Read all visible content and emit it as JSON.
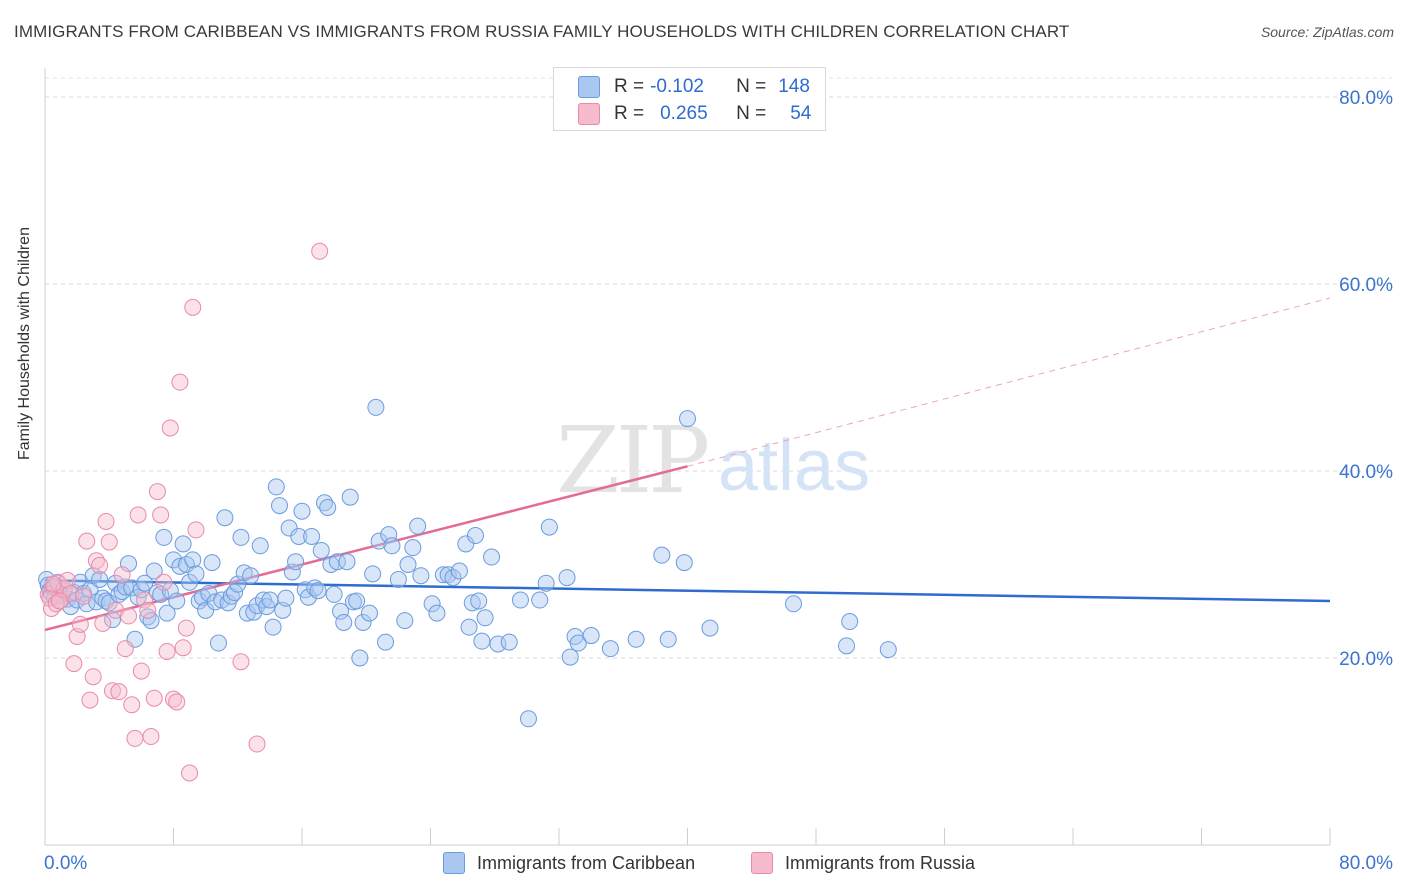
{
  "title": "IMMIGRANTS FROM CARIBBEAN VS IMMIGRANTS FROM RUSSIA FAMILY HOUSEHOLDS WITH CHILDREN CORRELATION CHART",
  "source": "Source: ZipAtlas.com",
  "watermark": {
    "zip": "ZIP",
    "atlas": "atlas"
  },
  "legend": {
    "r_label": "R =",
    "n_label": "N =",
    "rows": [
      {
        "r": "-0.102",
        "n": "148",
        "color": "#a9c7ef",
        "border": "#6b9be0"
      },
      {
        "r": "0.265",
        "n": "54",
        "color": "#f6bccd",
        "border": "#e98aa9"
      }
    ]
  },
  "bottom_legend": [
    {
      "label": "Immigrants from Caribbean",
      "color": "#a9c7ef",
      "border": "#6b9be0"
    },
    {
      "label": "Immigrants from Russia",
      "color": "#f6bccd",
      "border": "#e98aa9"
    }
  ],
  "chart_data": {
    "type": "scatter",
    "title": "IMMIGRANTS FROM CARIBBEAN VS IMMIGRANTS FROM RUSSIA FAMILY HOUSEHOLDS WITH CHILDREN CORRELATION CHART",
    "xlabel": "",
    "ylabel": "Family Households with Children",
    "xlim": [
      0,
      80
    ],
    "ylim": [
      0,
      82
    ],
    "x_tick_labels": [
      "0.0%",
      "80.0%"
    ],
    "y_tick_labels": [
      {
        "value": 20,
        "label": "20.0%"
      },
      {
        "value": 40,
        "label": "40.0%"
      },
      {
        "value": 60,
        "label": "60.0%"
      },
      {
        "value": 80,
        "label": "80.0%"
      }
    ],
    "grid": "horizontal dashed",
    "legend_position": "top-center",
    "series": [
      {
        "name": "Immigrants from Caribbean",
        "color": "#6b9be0",
        "fill": "rgba(169,199,239,0.45)",
        "trend": {
          "x": [
            0,
            80
          ],
          "y": [
            28.3,
            26.1
          ],
          "color": "#2f6ccf",
          "dashed_extension": false
        },
        "points": [
          [
            0.1,
            28.4
          ],
          [
            0.2,
            27.8
          ],
          [
            0.3,
            27.2
          ],
          [
            0.4,
            26.9
          ],
          [
            0.5,
            27.5
          ],
          [
            0.6,
            26.5
          ],
          [
            0.8,
            28.0
          ],
          [
            1.0,
            26.8
          ],
          [
            1.2,
            27.2
          ],
          [
            1.4,
            26.3
          ],
          [
            1.6,
            25.5
          ],
          [
            1.8,
            27.0
          ],
          [
            2.0,
            26.2
          ],
          [
            2.2,
            28.1
          ],
          [
            2.4,
            26.9
          ],
          [
            2.6,
            25.8
          ],
          [
            2.8,
            27.3
          ],
          [
            3.0,
            28.8
          ],
          [
            3.2,
            26.0
          ],
          [
            3.4,
            28.4
          ],
          [
            3.6,
            26.4
          ],
          [
            3.8,
            26.1
          ],
          [
            4.0,
            25.9
          ],
          [
            4.2,
            24.1
          ],
          [
            4.4,
            28.0
          ],
          [
            4.6,
            26.8
          ],
          [
            4.8,
            27.1
          ],
          [
            5.0,
            27.6
          ],
          [
            5.2,
            30.1
          ],
          [
            5.4,
            27.5
          ],
          [
            5.6,
            22.0
          ],
          [
            5.8,
            26.5
          ],
          [
            6.0,
            27.3
          ],
          [
            6.2,
            28.0
          ],
          [
            6.4,
            24.4
          ],
          [
            6.6,
            24.0
          ],
          [
            6.8,
            29.3
          ],
          [
            7.0,
            27.0
          ],
          [
            7.2,
            26.8
          ],
          [
            7.4,
            32.9
          ],
          [
            7.6,
            24.8
          ],
          [
            7.8,
            27.2
          ],
          [
            8.0,
            30.5
          ],
          [
            8.2,
            26.1
          ],
          [
            8.4,
            29.8
          ],
          [
            8.6,
            32.2
          ],
          [
            8.8,
            30.0
          ],
          [
            9.0,
            28.1
          ],
          [
            9.2,
            30.5
          ],
          [
            9.4,
            29.0
          ],
          [
            9.6,
            26.1
          ],
          [
            9.8,
            26.5
          ],
          [
            10.0,
            25.1
          ],
          [
            10.2,
            26.9
          ],
          [
            10.4,
            30.2
          ],
          [
            10.6,
            26.0
          ],
          [
            10.8,
            21.6
          ],
          [
            11.0,
            26.2
          ],
          [
            11.2,
            35.0
          ],
          [
            11.4,
            25.9
          ],
          [
            11.6,
            26.6
          ],
          [
            11.8,
            27.0
          ],
          [
            12.0,
            27.9
          ],
          [
            12.2,
            32.9
          ],
          [
            12.4,
            29.1
          ],
          [
            12.6,
            24.8
          ],
          [
            12.8,
            28.8
          ],
          [
            13.0,
            24.9
          ],
          [
            13.2,
            25.6
          ],
          [
            13.4,
            32.0
          ],
          [
            13.6,
            26.2
          ],
          [
            13.8,
            25.5
          ],
          [
            14.0,
            26.2
          ],
          [
            14.2,
            23.3
          ],
          [
            14.4,
            38.3
          ],
          [
            14.6,
            36.3
          ],
          [
            14.8,
            25.1
          ],
          [
            15.0,
            26.4
          ],
          [
            15.2,
            33.9
          ],
          [
            15.4,
            29.2
          ],
          [
            15.6,
            30.3
          ],
          [
            15.8,
            33.0
          ],
          [
            16.0,
            35.7
          ],
          [
            16.2,
            27.3
          ],
          [
            16.4,
            26.5
          ],
          [
            16.6,
            33.0
          ],
          [
            16.8,
            27.5
          ],
          [
            17.0,
            27.2
          ],
          [
            17.2,
            31.5
          ],
          [
            17.4,
            36.6
          ],
          [
            17.6,
            36.1
          ],
          [
            17.8,
            30.0
          ],
          [
            18.0,
            26.8
          ],
          [
            18.2,
            30.3
          ],
          [
            18.4,
            25.0
          ],
          [
            18.6,
            23.8
          ],
          [
            18.8,
            30.3
          ],
          [
            19.0,
            37.2
          ],
          [
            19.2,
            26.0
          ],
          [
            19.4,
            26.1
          ],
          [
            19.6,
            20.0
          ],
          [
            19.8,
            23.8
          ],
          [
            20.2,
            24.8
          ],
          [
            20.4,
            29.0
          ],
          [
            20.6,
            46.8
          ],
          [
            20.8,
            32.5
          ],
          [
            21.2,
            21.7
          ],
          [
            21.4,
            33.2
          ],
          [
            21.6,
            32.0
          ],
          [
            22.0,
            28.4
          ],
          [
            22.4,
            24.0
          ],
          [
            22.6,
            30.0
          ],
          [
            22.9,
            31.8
          ],
          [
            23.2,
            34.1
          ],
          [
            23.4,
            28.8
          ],
          [
            24.1,
            25.8
          ],
          [
            24.4,
            24.8
          ],
          [
            24.8,
            28.9
          ],
          [
            25.1,
            28.9
          ],
          [
            25.4,
            28.6
          ],
          [
            25.8,
            29.3
          ],
          [
            26.2,
            32.2
          ],
          [
            26.4,
            23.3
          ],
          [
            26.6,
            25.9
          ],
          [
            26.8,
            33.1
          ],
          [
            27.0,
            26.1
          ],
          [
            27.2,
            21.8
          ],
          [
            27.4,
            24.3
          ],
          [
            27.8,
            30.8
          ],
          [
            28.2,
            21.5
          ],
          [
            28.9,
            21.7
          ],
          [
            29.6,
            26.2
          ],
          [
            30.1,
            13.5
          ],
          [
            30.8,
            26.2
          ],
          [
            31.2,
            28.0
          ],
          [
            31.4,
            34.0
          ],
          [
            32.5,
            28.6
          ],
          [
            32.7,
            20.1
          ],
          [
            33.0,
            22.3
          ],
          [
            33.2,
            21.6
          ],
          [
            34.0,
            22.4
          ],
          [
            35.2,
            21.0
          ],
          [
            36.8,
            22.0
          ],
          [
            38.4,
            31.0
          ],
          [
            38.8,
            22.0
          ],
          [
            39.8,
            30.2
          ],
          [
            40.0,
            45.6
          ],
          [
            41.4,
            23.2
          ],
          [
            46.6,
            25.8
          ],
          [
            49.9,
            21.3
          ],
          [
            50.1,
            23.9
          ],
          [
            52.5,
            20.9
          ]
        ]
      },
      {
        "name": "Immigrants from Russia",
        "color": "#e98aa9",
        "fill": "rgba(246,188,205,0.45)",
        "trend": {
          "x": [
            0,
            40
          ],
          "y": [
            23.0,
            40.5
          ],
          "x_ext": 80,
          "y_ext": 58.5,
          "color": "#e46b94",
          "dashed_extension": true
        },
        "points": [
          [
            0.2,
            26.8
          ],
          [
            0.4,
            25.3
          ],
          [
            0.6,
            27.6
          ],
          [
            0.8,
            28.1
          ],
          [
            1.0,
            26.2
          ],
          [
            1.2,
            27.4
          ],
          [
            1.4,
            28.3
          ],
          [
            1.6,
            26.9
          ],
          [
            1.8,
            19.4
          ],
          [
            2.0,
            22.3
          ],
          [
            2.2,
            23.6
          ],
          [
            2.4,
            26.6
          ],
          [
            2.6,
            32.5
          ],
          [
            2.8,
            15.5
          ],
          [
            3.0,
            18.0
          ],
          [
            3.2,
            30.4
          ],
          [
            3.4,
            29.9
          ],
          [
            3.6,
            23.7
          ],
          [
            3.8,
            34.6
          ],
          [
            4.0,
            32.4
          ],
          [
            4.2,
            16.5
          ],
          [
            4.4,
            25.1
          ],
          [
            4.6,
            16.4
          ],
          [
            4.8,
            28.9
          ],
          [
            5.0,
            21.0
          ],
          [
            5.2,
            24.5
          ],
          [
            5.4,
            15.0
          ],
          [
            5.6,
            11.4
          ],
          [
            5.8,
            35.3
          ],
          [
            6.0,
            18.6
          ],
          [
            6.2,
            26.2
          ],
          [
            6.4,
            25.1
          ],
          [
            6.6,
            11.6
          ],
          [
            6.8,
            15.7
          ],
          [
            7.0,
            37.8
          ],
          [
            7.2,
            35.3
          ],
          [
            7.4,
            28.1
          ],
          [
            7.6,
            20.7
          ],
          [
            7.8,
            44.6
          ],
          [
            8.0,
            15.6
          ],
          [
            8.2,
            15.3
          ],
          [
            8.4,
            49.5
          ],
          [
            8.6,
            21.1
          ],
          [
            8.8,
            23.2
          ],
          [
            9.0,
            7.7
          ],
          [
            9.2,
            57.5
          ],
          [
            9.4,
            33.7
          ],
          [
            12.2,
            19.6
          ],
          [
            13.2,
            10.8
          ],
          [
            17.1,
            63.5
          ],
          [
            0.3,
            26.4
          ],
          [
            0.5,
            27.9
          ],
          [
            0.7,
            25.8
          ],
          [
            0.9,
            26.1
          ]
        ]
      }
    ]
  }
}
